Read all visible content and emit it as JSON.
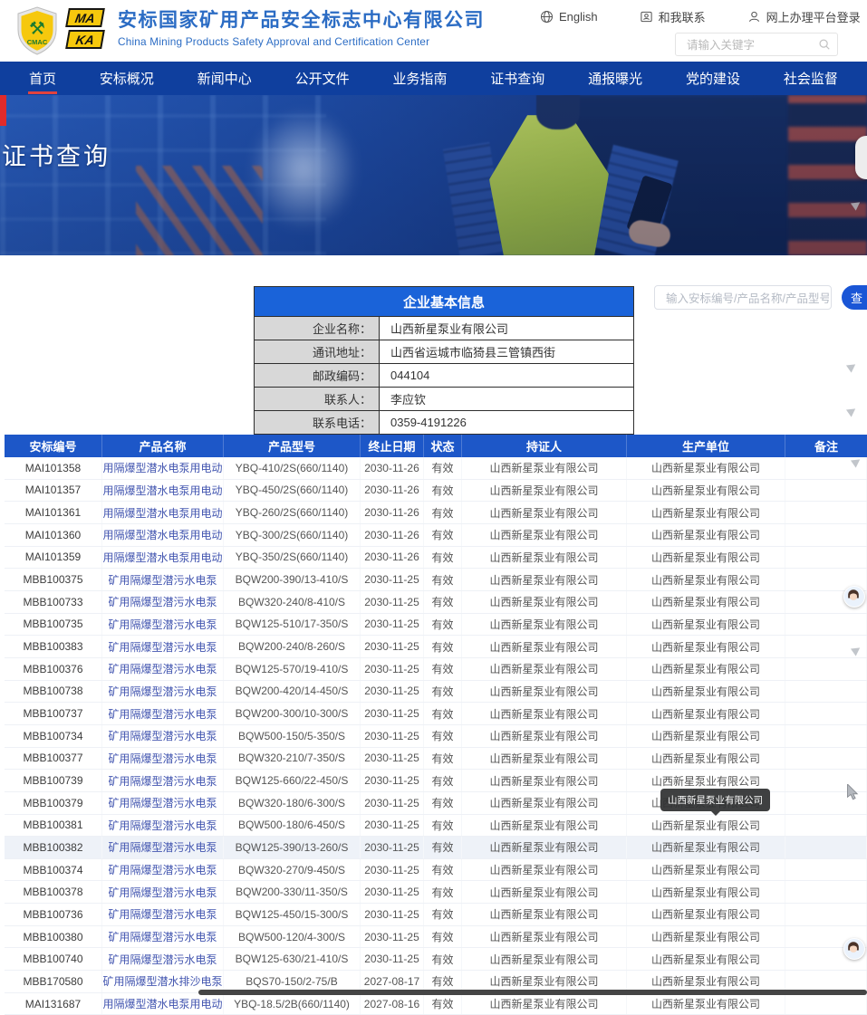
{
  "header": {
    "logo": {
      "shield_text": "CMAC",
      "ma": "MA",
      "ka": "KA"
    },
    "title_cn": "安标国家矿用产品安全标志中心有限公司",
    "title_en": "China Mining Products Safety Approval and Certification Center",
    "links": [
      {
        "label": "English",
        "icon": "globe-icon"
      },
      {
        "label": "和我联系",
        "icon": "contact-icon"
      },
      {
        "label": "网上办理平台登录",
        "icon": "user-icon"
      }
    ],
    "search_placeholder": "请输入关键字"
  },
  "nav": {
    "items": [
      {
        "label": "首页",
        "active": true
      },
      {
        "label": "安标概况",
        "active": false
      },
      {
        "label": "新闻中心",
        "active": false
      },
      {
        "label": "公开文件",
        "active": false
      },
      {
        "label": "业务指南",
        "active": false
      },
      {
        "label": "证书查询",
        "active": false
      },
      {
        "label": "通报曝光",
        "active": false
      },
      {
        "label": "党的建设",
        "active": false
      },
      {
        "label": "社会监督",
        "active": false
      }
    ]
  },
  "banner": {
    "title": "证书查询"
  },
  "company_info": {
    "title": "企业基本信息",
    "fields": [
      {
        "label": "企业名称：",
        "value": "山西新星泵业有限公司"
      },
      {
        "label": "通讯地址：",
        "value": "山西省运城市临猗县三管镇西街"
      },
      {
        "label": "邮政编码：",
        "value": "044104"
      },
      {
        "label": "联系人：",
        "value": "李应钦"
      },
      {
        "label": "联系电话：",
        "value": "0359-4191226"
      }
    ]
  },
  "cert_search": {
    "placeholder": "输入安标编号/产品名称/产品型号",
    "button_label": "查"
  },
  "cert_table": {
    "columns": [
      "安标编号",
      "产品名称",
      "产品型号",
      "终止日期",
      "状态",
      "持证人",
      "生产单位",
      "备注"
    ],
    "highlighted_row_id": "MBB100382",
    "rows": [
      [
        "MAI101358",
        "矿用隔爆型潜水电泵用电动机",
        "YBQ-410/2S(660/1140)",
        "2030-11-26",
        "有效",
        "山西新星泵业有限公司",
        "山西新星泵业有限公司",
        ""
      ],
      [
        "MAI101357",
        "矿用隔爆型潜水电泵用电动机",
        "YBQ-450/2S(660/1140)",
        "2030-11-26",
        "有效",
        "山西新星泵业有限公司",
        "山西新星泵业有限公司",
        ""
      ],
      [
        "MAI101361",
        "矿用隔爆型潜水电泵用电动机",
        "YBQ-260/2S(660/1140)",
        "2030-11-26",
        "有效",
        "山西新星泵业有限公司",
        "山西新星泵业有限公司",
        ""
      ],
      [
        "MAI101360",
        "矿用隔爆型潜水电泵用电动机",
        "YBQ-300/2S(660/1140)",
        "2030-11-26",
        "有效",
        "山西新星泵业有限公司",
        "山西新星泵业有限公司",
        ""
      ],
      [
        "MAI101359",
        "矿用隔爆型潜水电泵用电动机",
        "YBQ-350/2S(660/1140)",
        "2030-11-26",
        "有效",
        "山西新星泵业有限公司",
        "山西新星泵业有限公司",
        ""
      ],
      [
        "MBB100375",
        "矿用隔爆型潜污水电泵",
        "BQW200-390/13-410/S",
        "2030-11-25",
        "有效",
        "山西新星泵业有限公司",
        "山西新星泵业有限公司",
        ""
      ],
      [
        "MBB100733",
        "矿用隔爆型潜污水电泵",
        "BQW320-240/8-410/S",
        "2030-11-25",
        "有效",
        "山西新星泵业有限公司",
        "山西新星泵业有限公司",
        ""
      ],
      [
        "MBB100735",
        "矿用隔爆型潜污水电泵",
        "BQW125-510/17-350/S",
        "2030-11-25",
        "有效",
        "山西新星泵业有限公司",
        "山西新星泵业有限公司",
        ""
      ],
      [
        "MBB100383",
        "矿用隔爆型潜污水电泵",
        "BQW200-240/8-260/S",
        "2030-11-25",
        "有效",
        "山西新星泵业有限公司",
        "山西新星泵业有限公司",
        ""
      ],
      [
        "MBB100376",
        "矿用隔爆型潜污水电泵",
        "BQW125-570/19-410/S",
        "2030-11-25",
        "有效",
        "山西新星泵业有限公司",
        "山西新星泵业有限公司",
        ""
      ],
      [
        "MBB100738",
        "矿用隔爆型潜污水电泵",
        "BQW200-420/14-450/S",
        "2030-11-25",
        "有效",
        "山西新星泵业有限公司",
        "山西新星泵业有限公司",
        ""
      ],
      [
        "MBB100737",
        "矿用隔爆型潜污水电泵",
        "BQW200-300/10-300/S",
        "2030-11-25",
        "有效",
        "山西新星泵业有限公司",
        "山西新星泵业有限公司",
        ""
      ],
      [
        "MBB100734",
        "矿用隔爆型潜污水电泵",
        "BQW500-150/5-350/S",
        "2030-11-25",
        "有效",
        "山西新星泵业有限公司",
        "山西新星泵业有限公司",
        ""
      ],
      [
        "MBB100377",
        "矿用隔爆型潜污水电泵",
        "BQW320-210/7-350/S",
        "2030-11-25",
        "有效",
        "山西新星泵业有限公司",
        "山西新星泵业有限公司",
        ""
      ],
      [
        "MBB100739",
        "矿用隔爆型潜污水电泵",
        "BQW125-660/22-450/S",
        "2030-11-25",
        "有效",
        "山西新星泵业有限公司",
        "山西新星泵业有限公司",
        ""
      ],
      [
        "MBB100379",
        "矿用隔爆型潜污水电泵",
        "BQW320-180/6-300/S",
        "2030-11-25",
        "有效",
        "山西新星泵业有限公司",
        "山西新星泵业有限公司",
        ""
      ],
      [
        "MBB100381",
        "矿用隔爆型潜污水电泵",
        "BQW500-180/6-450/S",
        "2030-11-25",
        "有效",
        "山西新星泵业有限公司",
        "山西新星泵业有限公司",
        ""
      ],
      [
        "MBB100382",
        "矿用隔爆型潜污水电泵",
        "BQW125-390/13-260/S",
        "2030-11-25",
        "有效",
        "山西新星泵业有限公司",
        "山西新星泵业有限公司",
        ""
      ],
      [
        "MBB100374",
        "矿用隔爆型潜污水电泵",
        "BQW320-270/9-450/S",
        "2030-11-25",
        "有效",
        "山西新星泵业有限公司",
        "山西新星泵业有限公司",
        ""
      ],
      [
        "MBB100378",
        "矿用隔爆型潜污水电泵",
        "BQW200-330/11-350/S",
        "2030-11-25",
        "有效",
        "山西新星泵业有限公司",
        "山西新星泵业有限公司",
        ""
      ],
      [
        "MBB100736",
        "矿用隔爆型潜污水电泵",
        "BQW125-450/15-300/S",
        "2030-11-25",
        "有效",
        "山西新星泵业有限公司",
        "山西新星泵业有限公司",
        ""
      ],
      [
        "MBB100380",
        "矿用隔爆型潜污水电泵",
        "BQW500-120/4-300/S",
        "2030-11-25",
        "有效",
        "山西新星泵业有限公司",
        "山西新星泵业有限公司",
        ""
      ],
      [
        "MBB100740",
        "矿用隔爆型潜污水电泵",
        "BQW125-630/21-410/S",
        "2030-11-25",
        "有效",
        "山西新星泵业有限公司",
        "山西新星泵业有限公司",
        ""
      ],
      [
        "MBB170580",
        "矿用隔爆型潜水排沙电泵",
        "BQS70-150/2-75/B",
        "2027-08-17",
        "有效",
        "山西新星泵业有限公司",
        "山西新星泵业有限公司",
        ""
      ],
      [
        "MAI131687",
        "矿用隔爆型潜水电泵用电动机",
        "YBQ-18.5/2B(660/1140)",
        "2027-08-16",
        "有效",
        "山西新星泵业有限公司",
        "山西新星泵业有限公司",
        ""
      ]
    ],
    "tooltip": {
      "text": "山西新星泵业有限公司"
    }
  },
  "colors": {
    "nav_blue": "#0f3f9e",
    "table_header_blue": "#1d57c8",
    "info_header_blue": "#1a63d9",
    "brand_red": "#e02b2b",
    "link_blue": "#4356b0",
    "title_blue": "#2b6cc4"
  }
}
